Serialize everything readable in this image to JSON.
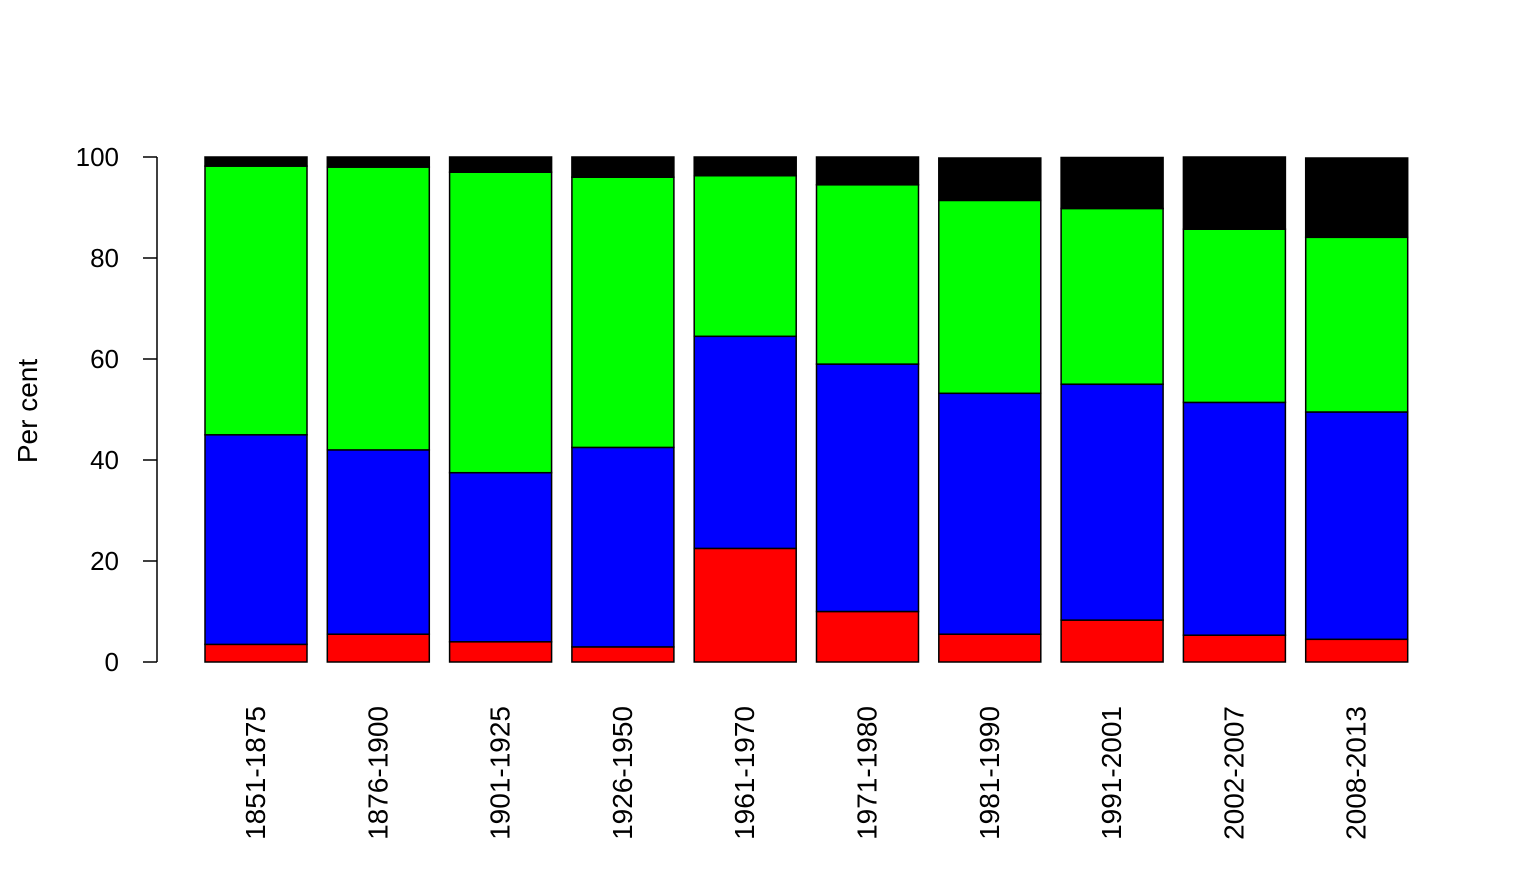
{
  "chart_data": {
    "type": "bar",
    "stacked": true,
    "title": "",
    "xlabel": "",
    "ylabel": "Per cent",
    "ylim": [
      0,
      100
    ],
    "yticks": [
      "0",
      "20",
      "40",
      "60",
      "80",
      "100"
    ],
    "grid": false,
    "legend": "none",
    "categories": [
      "1851-1875",
      "1876-1900",
      "1901-1925",
      "1926-1950",
      "1961-1970",
      "1971-1980",
      "1981-1990",
      "1991-2001",
      "2002-2007",
      "2008-2013"
    ],
    "series": [
      {
        "color": "#ff0000",
        "values": [
          3.5,
          5.5,
          4,
          3,
          22.5,
          10,
          5.5,
          8.3,
          5.3,
          4.5
        ]
      },
      {
        "color": "#0000ff",
        "values": [
          41.5,
          36.5,
          33.5,
          39.5,
          42,
          49,
          47.7,
          46.7,
          46.1,
          45
        ]
      },
      {
        "color": "#00ff00",
        "values": [
          53.2,
          56,
          59.5,
          53.5,
          31.8,
          35.5,
          38.2,
          34.8,
          34.3,
          34.6
        ]
      },
      {
        "color": "#000000",
        "values": [
          1.8,
          2,
          3,
          4,
          3.7,
          5.5,
          8.4,
          10.1,
          14.3,
          15.7
        ]
      }
    ]
  }
}
